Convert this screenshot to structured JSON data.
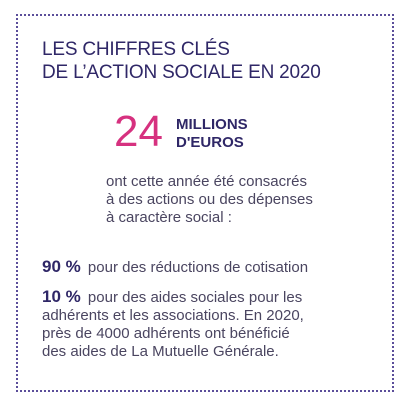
{
  "title": {
    "line1": "LES CHIFFRES CLÉS",
    "line2": "DE L’ACTION SOCIALE EN 2020"
  },
  "highlight": {
    "value": "24",
    "unit_line1": "MILLIONS",
    "unit_line2": "D'EUROS"
  },
  "description": {
    "line1": "ont cette année été consacrés",
    "line2": "à des actions ou des dépenses",
    "line3": "à caractère social :"
  },
  "stats": [
    {
      "percent": "90 %",
      "text": "pour des réductions de cotisation"
    },
    {
      "percent": "10 %",
      "line1": "pour des aides sociales pour les",
      "line2": "adhérents et les associations. En 2020,",
      "line3": "près de 4000 adhérents ont bénéficié",
      "line4": "des aides de La Mutuelle Générale."
    }
  ],
  "colors": {
    "navy": "#2f2767",
    "pink": "#d6317f",
    "border": "#5b4e9a",
    "text": "#4a4560"
  }
}
